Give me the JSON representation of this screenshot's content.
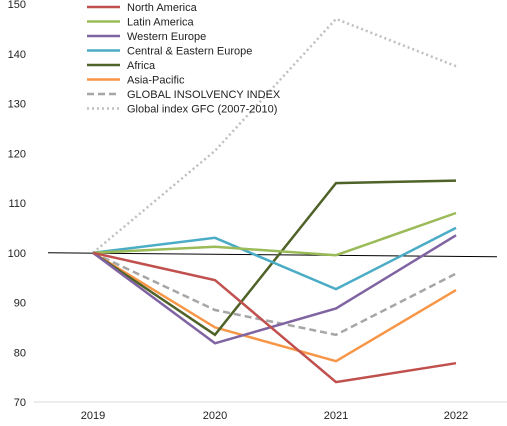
{
  "chart_data": {
    "type": "line",
    "title": "",
    "xlabel": "",
    "ylabel": "",
    "categories": [
      "2019",
      "2020",
      "2021",
      "2022"
    ],
    "ylim": [
      70,
      150
    ],
    "yticks": [
      70,
      80,
      90,
      100,
      110,
      120,
      130,
      140,
      150
    ],
    "grid": false,
    "reference_line": {
      "value": 100,
      "color": "#000000"
    },
    "legend": {
      "placement": "top-left"
    },
    "series": [
      {
        "name": "North America",
        "values": [
          100,
          94.5,
          74,
          77.8
        ],
        "color": "#C0504D",
        "style": "solid"
      },
      {
        "name": "Latin America",
        "values": [
          100,
          101.2,
          99.5,
          108
        ],
        "color": "#9BBB59",
        "style": "solid"
      },
      {
        "name": "Western Europe",
        "values": [
          100,
          81.8,
          88.8,
          103.5
        ],
        "color": "#8064A2",
        "style": "solid"
      },
      {
        "name": "Central & Eastern Europe",
        "values": [
          100,
          103,
          92.7,
          105
        ],
        "color": "#4BACC6",
        "style": "solid"
      },
      {
        "name": "Africa",
        "values": [
          100,
          83.5,
          114,
          114.5
        ],
        "color": "#4F6228",
        "style": "solid"
      },
      {
        "name": "Asia-Pacific",
        "values": [
          100,
          85,
          78.2,
          92.5
        ],
        "color": "#F79646",
        "style": "solid"
      },
      {
        "name": "GLOBAL INSOLVENCY INDEX",
        "values": [
          100,
          88.5,
          83.5,
          95.8
        ],
        "color": "#A6A6A6",
        "style": "dashed"
      },
      {
        "name": "Global index GFC (2007-2010)",
        "values": [
          100,
          120.5,
          147,
          137.5
        ],
        "color": "#BFBFBF",
        "style": "dotted"
      }
    ]
  }
}
